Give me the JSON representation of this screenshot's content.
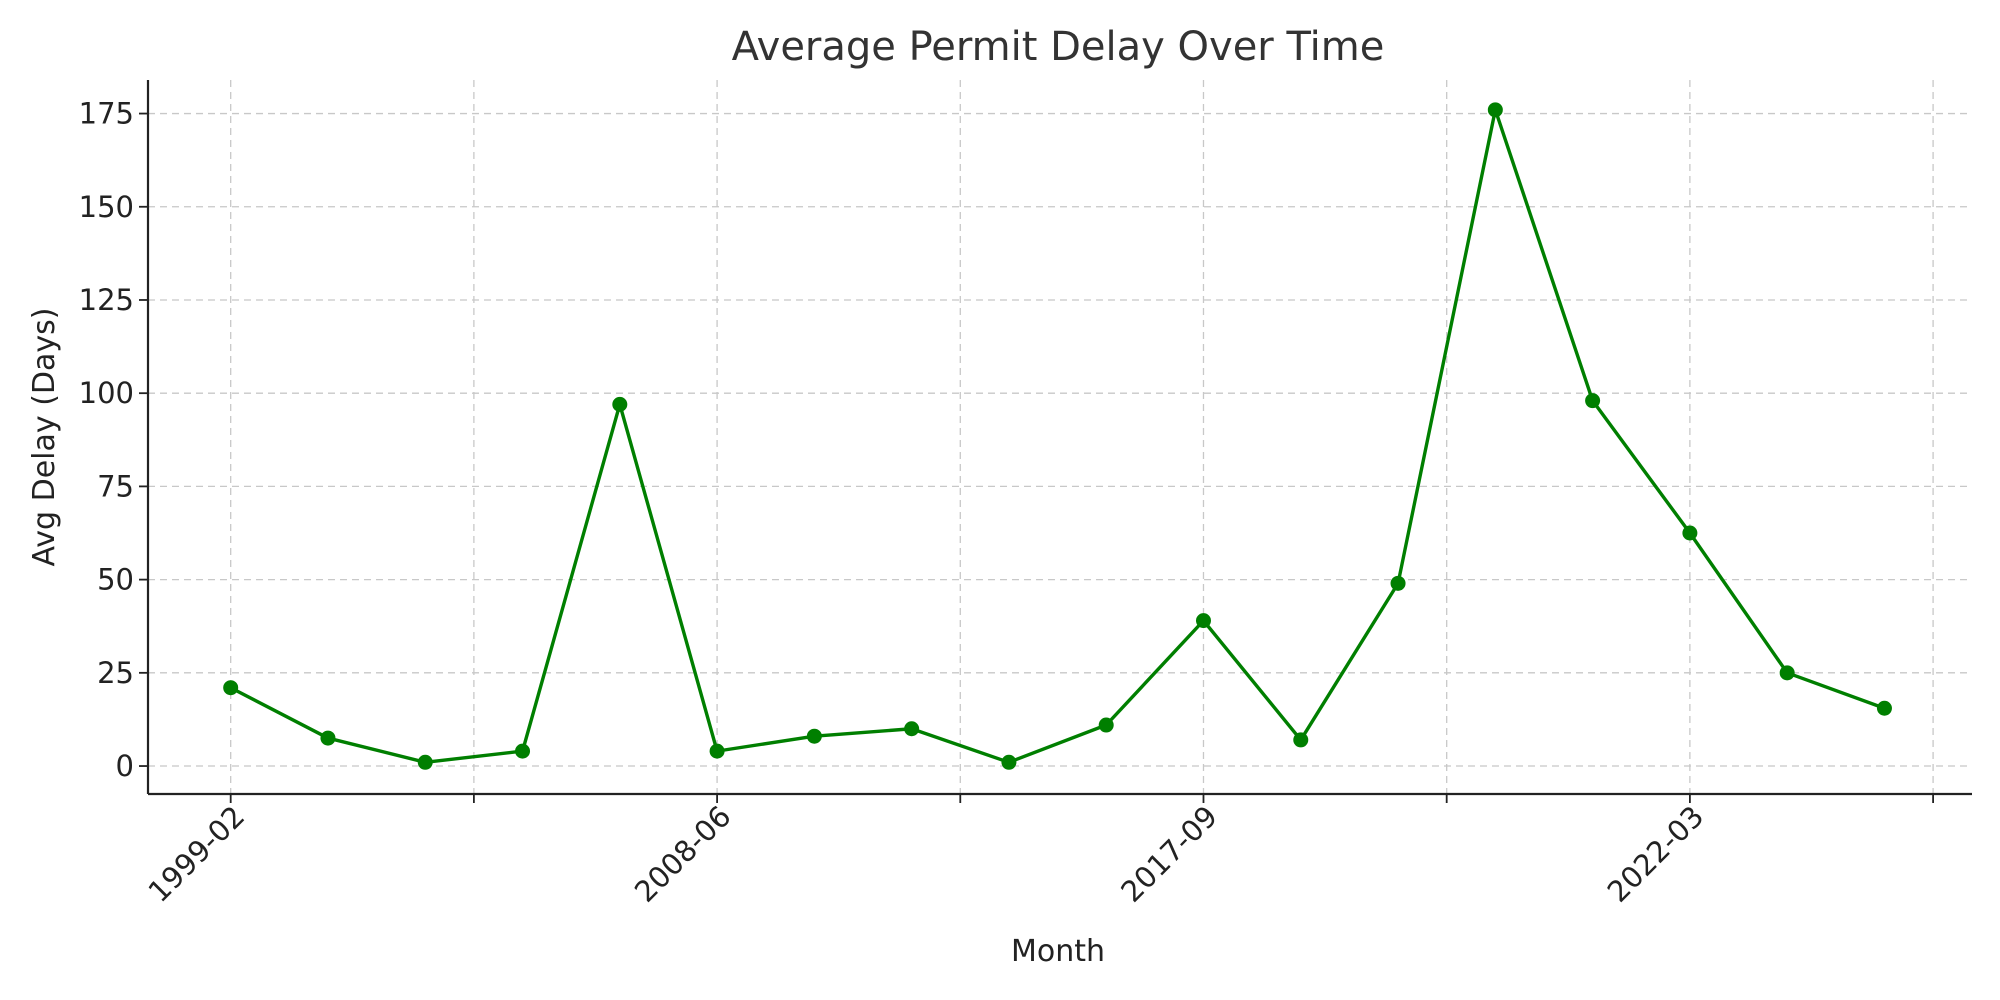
{
  "chart_data": {
    "type": "line",
    "title": "Average Permit Delay Over Time",
    "xlabel": "Month",
    "ylabel": "Avg Delay (Days)",
    "categories": [
      "1999-02",
      "",
      "",
      "",
      "",
      "2008-06",
      "",
      "",
      "",
      "",
      "2017-09",
      "",
      "",
      "",
      "",
      "2022-03",
      "",
      ""
    ],
    "x_tick_labels": [
      {
        "index": 0,
        "label": "1999-02"
      },
      {
        "index": 5,
        "label": "2008-06"
      },
      {
        "index": 10,
        "label": "2017-09"
      },
      {
        "index": 15,
        "label": "2022-03"
      }
    ],
    "x_minor_tick_positions": [
      2.5,
      7.5,
      12.5,
      17.5
    ],
    "series": [
      {
        "values": [
          21,
          7.5,
          1,
          4,
          97,
          4,
          8,
          10,
          1,
          11,
          39,
          7,
          49,
          176,
          98,
          62.5,
          25,
          15.5
        ]
      }
    ],
    "y_ticks": [
      0,
      25,
      50,
      75,
      100,
      125,
      150,
      175
    ],
    "ylim": [
      -7.5,
      184
    ],
    "xlim": [
      -0.85,
      17.9
    ],
    "grid": true,
    "colors": {
      "line": "#007f00",
      "marker": "#007f00"
    }
  }
}
